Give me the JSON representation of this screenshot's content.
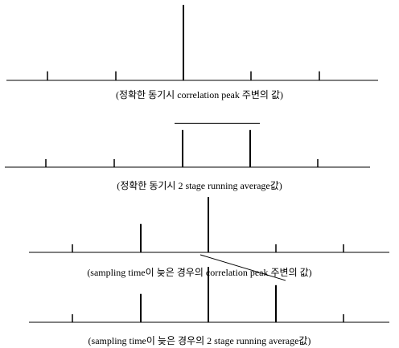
{
  "panels": [
    {
      "id": "exact-sync-correlation",
      "caption": "(정확한 동기시 correlation peak 주변의 값)",
      "values": [
        0.12,
        0.12,
        1.0,
        0.12,
        0.12
      ],
      "average_line": null
    },
    {
      "id": "exact-sync-running-average",
      "caption": "(정확한 동기시 2 stage running average값)",
      "values": [
        0.12,
        0.12,
        0.55,
        0.55,
        0.12
      ],
      "average_line": {
        "from_index": 2,
        "to_index": 3,
        "start_level": 0.65,
        "end_level": 0.65
      }
    },
    {
      "id": "late-sampling-correlation",
      "caption": "(sampling time이 늦은 경우의 correlation peak 주변의 값)",
      "values": [
        0.12,
        0.42,
        0.82,
        0.12,
        0.12
      ],
      "average_line": null
    },
    {
      "id": "late-sampling-running-average",
      "caption": "(sampling time이 늦은 경우의 2 stage running average값)",
      "values": [
        0.12,
        0.42,
        0.82,
        0.55,
        0.12
      ],
      "average_line": {
        "from_index": 2,
        "to_index": 3,
        "start_level": 1.0,
        "end_level": 0.62
      }
    }
  ]
}
